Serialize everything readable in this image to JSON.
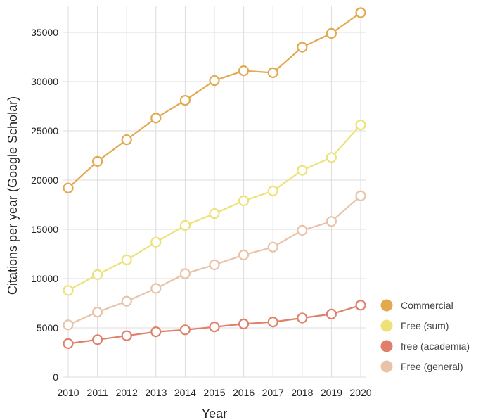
{
  "chart_data": {
    "type": "line",
    "x": [
      2010,
      2011,
      2012,
      2013,
      2014,
      2015,
      2016,
      2017,
      2018,
      2019,
      2020
    ],
    "xlabel": "Year",
    "ylabel": "Citations per year (Google Scholar)",
    "ylim": [
      0,
      37000
    ],
    "yticks": [
      0,
      5000,
      10000,
      15000,
      20000,
      25000,
      30000,
      35000
    ],
    "grid": true,
    "legend_position": "bottom-right",
    "series": [
      {
        "name": "Commercial",
        "color": "#E2A94F",
        "values": [
          19200,
          21900,
          24100,
          26300,
          28100,
          30100,
          31100,
          30900,
          33500,
          34900,
          37000
        ]
      },
      {
        "name": "Free (sum)",
        "color": "#EDE177",
        "values": [
          8800,
          10400,
          11900,
          13700,
          15400,
          16600,
          17900,
          18900,
          21000,
          22300,
          25600
        ]
      },
      {
        "name": "free (academia)",
        "color": "#E0806A",
        "values": [
          3400,
          3800,
          4200,
          4600,
          4800,
          5100,
          5400,
          5600,
          6000,
          6400,
          7300
        ]
      },
      {
        "name": "Free (general)",
        "color": "#E8C3A8",
        "values": [
          5300,
          6600,
          7700,
          9000,
          10500,
          11400,
          12400,
          13200,
          14900,
          15800,
          18400
        ]
      }
    ],
    "legend_draw_order": [
      0,
      1,
      2,
      3
    ],
    "line_draw_order": [
      3,
      2,
      1,
      0
    ]
  }
}
